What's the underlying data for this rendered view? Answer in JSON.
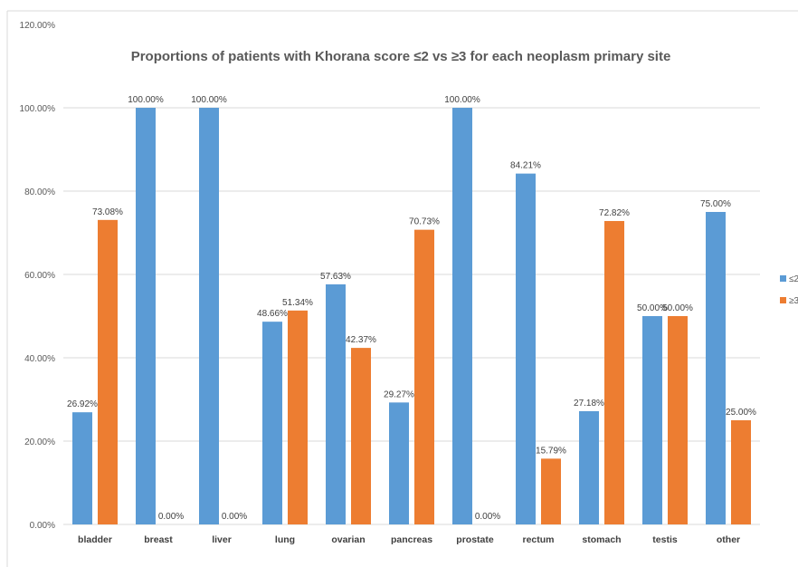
{
  "chart_data": {
    "type": "bar",
    "title": "Proportions of patients with Khorana score ≤2 vs ≥3 for each neoplasm primary site",
    "categories": [
      "bladder",
      "breast",
      "liver",
      "lung",
      "ovarian",
      "pancreas",
      "prostate",
      "rectum",
      "stomach",
      "testis",
      "other"
    ],
    "series": [
      {
        "name": "≤2",
        "color": "#5b9bd5",
        "values": [
          26.92,
          100.0,
          100.0,
          48.66,
          57.63,
          29.27,
          100.0,
          84.21,
          27.18,
          50.0,
          75.0
        ]
      },
      {
        "name": "≥3",
        "color": "#ed7d31",
        "values": [
          73.08,
          0.0,
          0.0,
          51.34,
          42.37,
          70.73,
          0.0,
          15.79,
          72.82,
          50.0,
          25.0
        ]
      }
    ],
    "value_format": "percent_2dp",
    "yticks": [
      "0.00%",
      "20.00%",
      "40.00%",
      "60.00%",
      "80.00%",
      "100.00%",
      "120.00%"
    ],
    "ylim": [
      0,
      120
    ],
    "grid": true,
    "legend_position": "right"
  }
}
